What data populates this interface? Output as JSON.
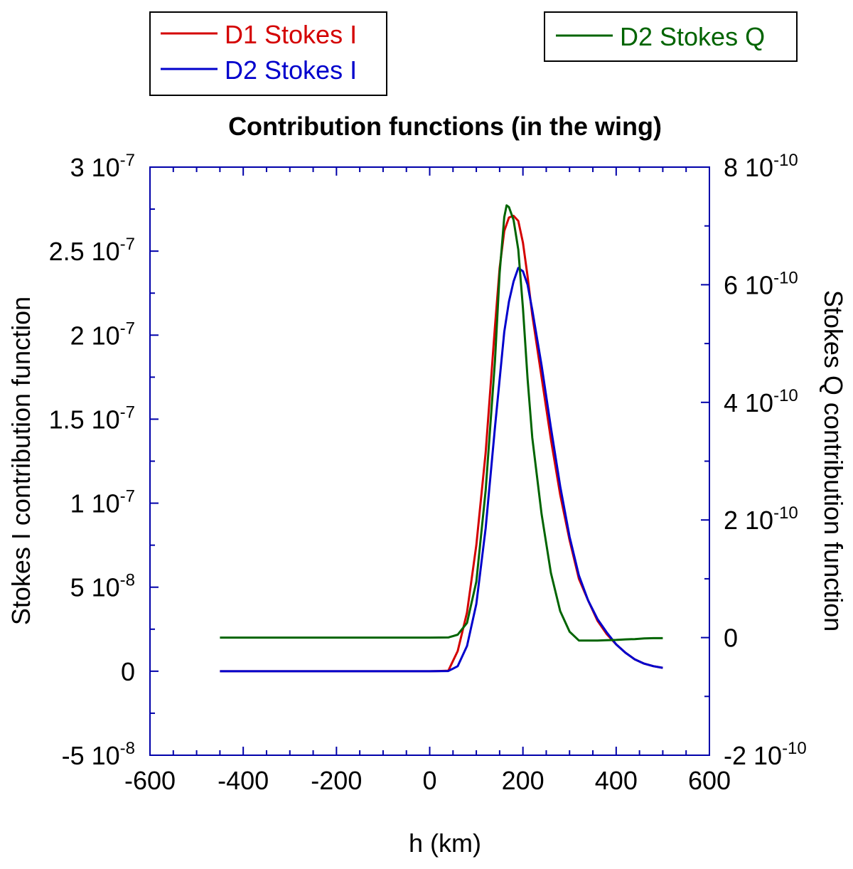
{
  "chart_data": {
    "type": "line",
    "title": "Contribution functions (in the wing)",
    "xlabel": "h (km)",
    "ylabel": "Stokes I contribution function",
    "y2label": "Stokes Q contribution function",
    "xlim": [
      -600,
      600
    ],
    "ylim": [
      -5e-08,
      3e-07
    ],
    "y2lim": [
      -2e-10,
      8e-10
    ],
    "x_ticks": [
      "-600",
      "-400",
      "-200",
      "0",
      "200",
      "400",
      "600"
    ],
    "y_ticks": [
      {
        "base": "-5 10",
        "exp": "-8"
      },
      {
        "base": "0",
        "exp": ""
      },
      {
        "base": "5 10",
        "exp": "-8"
      },
      {
        "base": "1 10",
        "exp": "-7"
      },
      {
        "base": "1.5 10",
        "exp": "-7"
      },
      {
        "base": "2 10",
        "exp": "-7"
      },
      {
        "base": "2.5 10",
        "exp": "-7"
      },
      {
        "base": "3 10",
        "exp": "-7"
      }
    ],
    "y2_ticks": [
      {
        "base": "-2 10",
        "exp": "-10"
      },
      {
        "base": "0",
        "exp": ""
      },
      {
        "base": "2 10",
        "exp": "-10"
      },
      {
        "base": "4 10",
        "exp": "-10"
      },
      {
        "base": "6 10",
        "exp": "-10"
      },
      {
        "base": "8 10",
        "exp": "-10"
      }
    ],
    "legend_left": [
      {
        "name": "D1 Stokes I",
        "color": "#d40000"
      },
      {
        "name": "D2 Stokes I",
        "color": "#0000cc"
      }
    ],
    "legend_right": [
      {
        "name": "D2 Stokes Q",
        "color": "#006400"
      }
    ],
    "series": [
      {
        "name": "D1 Stokes I",
        "axis": "left",
        "color": "#d40000",
        "x": [
          -450,
          0,
          20,
          40,
          60,
          80,
          100,
          120,
          140,
          150,
          160,
          170,
          180,
          190,
          200,
          210,
          220,
          240,
          260,
          280,
          300,
          320,
          340,
          360,
          380,
          400,
          420,
          440,
          460,
          480,
          500
        ],
        "y": [
          0,
          0,
          1e-10,
          3e-10,
          1.2e-08,
          3.5e-08,
          7.5e-08,
          1.3e-07,
          2.05e-07,
          2.4e-07,
          2.62e-07,
          2.7e-07,
          2.71e-07,
          2.68e-07,
          2.55e-07,
          2.35e-07,
          2.12e-07,
          1.75e-07,
          1.38e-07,
          1.05e-07,
          7.8e-08,
          5.5e-08,
          4.2e-08,
          3e-08,
          2.2e-08,
          1.6e-08,
          1.1e-08,
          7e-09,
          4.5e-09,
          3e-09,
          2e-09
        ]
      },
      {
        "name": "D2 Stokes I",
        "axis": "left",
        "color": "#0000cc",
        "x": [
          -450,
          0,
          40,
          60,
          80,
          100,
          120,
          140,
          160,
          170,
          180,
          190,
          200,
          210,
          220,
          240,
          260,
          280,
          300,
          320,
          340,
          360,
          380,
          400,
          420,
          440,
          460,
          480,
          500
        ],
        "y": [
          0,
          0,
          1e-10,
          3e-09,
          1.5e-08,
          4e-08,
          8.5e-08,
          1.45e-07,
          2.02e-07,
          2.2e-07,
          2.32e-07,
          2.4e-07,
          2.38e-07,
          2.3e-07,
          2.15e-07,
          1.82e-07,
          1.45e-07,
          1.1e-07,
          8e-08,
          5.7e-08,
          4.2e-08,
          3.1e-08,
          2.3e-08,
          1.6e-08,
          1.1e-08,
          7e-09,
          4.5e-09,
          3e-09,
          2e-09
        ]
      },
      {
        "name": "D2 Stokes Q",
        "axis": "right",
        "color": "#006400",
        "x": [
          -450,
          0,
          40,
          60,
          80,
          100,
          120,
          140,
          150,
          160,
          165,
          170,
          180,
          190,
          200,
          210,
          220,
          240,
          260,
          280,
          300,
          320,
          340,
          360,
          380,
          400,
          420,
          440,
          460,
          480,
          500
        ],
        "y": [
          0,
          0,
          2e-13,
          5e-12,
          2.5e-11,
          9.5e-11,
          2.5e-10,
          4.7e-10,
          6.2e-10,
          7.15e-10,
          7.35e-10,
          7.32e-10,
          7.1e-10,
          6.6e-10,
          5.6e-10,
          4.4e-10,
          3.4e-10,
          2.1e-10,
          1.1e-10,
          4.5e-11,
          1e-11,
          -5e-12,
          -5e-12,
          -5e-12,
          -4.5e-12,
          -4e-12,
          -3e-12,
          -2.5e-12,
          -1.5e-12,
          -1e-12,
          -1e-12
        ]
      }
    ]
  }
}
